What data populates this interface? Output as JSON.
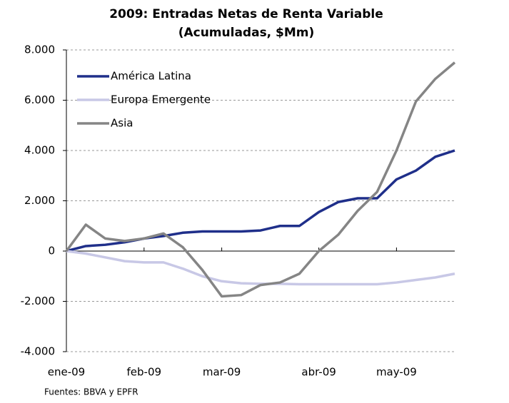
{
  "chart_data": {
    "type": "line",
    "title": "2009: Entradas Netas de Renta Variable",
    "subtitle": "(Acumuladas, $Mm)",
    "source": "Fuentes: BBVA y EPFR",
    "categories": [
      "ene-09",
      null,
      null,
      null,
      "feb-09",
      null,
      null,
      null,
      "mar-09",
      null,
      null,
      null,
      null,
      "abr-09",
      null,
      null,
      null,
      "may-09",
      null,
      null,
      null
    ],
    "series": [
      {
        "name": "América Latina",
        "color": "#1f2f8a",
        "values": [
          0,
          200,
          250,
          350,
          500,
          600,
          730,
          780,
          780,
          780,
          820,
          1000,
          1000,
          1550,
          1950,
          2100,
          2100,
          2850,
          3200,
          3750,
          4000
        ]
      },
      {
        "name": "Europa Emergente",
        "color": "#c8c8e6",
        "values": [
          0,
          -100,
          -250,
          -400,
          -450,
          -450,
          -700,
          -1000,
          -1200,
          -1280,
          -1300,
          -1300,
          -1320,
          -1320,
          -1320,
          -1320,
          -1320,
          -1250,
          -1150,
          -1050,
          -900
        ]
      },
      {
        "name": "Asia",
        "color": "#858585",
        "values": [
          0,
          1050,
          500,
          400,
          500,
          700,
          150,
          -750,
          -1800,
          -1750,
          -1350,
          -1250,
          -900,
          0,
          650,
          1600,
          2350,
          4000,
          5950,
          6850,
          7500
        ]
      }
    ],
    "ylim": [
      -4000,
      8000
    ],
    "yticks": [
      {
        "value": -4000,
        "label": "-4.000"
      },
      {
        "value": -2000,
        "label": "-2.000"
      },
      0,
      {
        "value": 2000,
        "label": "2.000"
      },
      {
        "value": 4000,
        "label": "4.000"
      },
      {
        "value": 6000,
        "label": "6.000"
      },
      {
        "value": 8000,
        "label": "8.000"
      }
    ],
    "grid": true,
    "legend": "upper-left"
  }
}
